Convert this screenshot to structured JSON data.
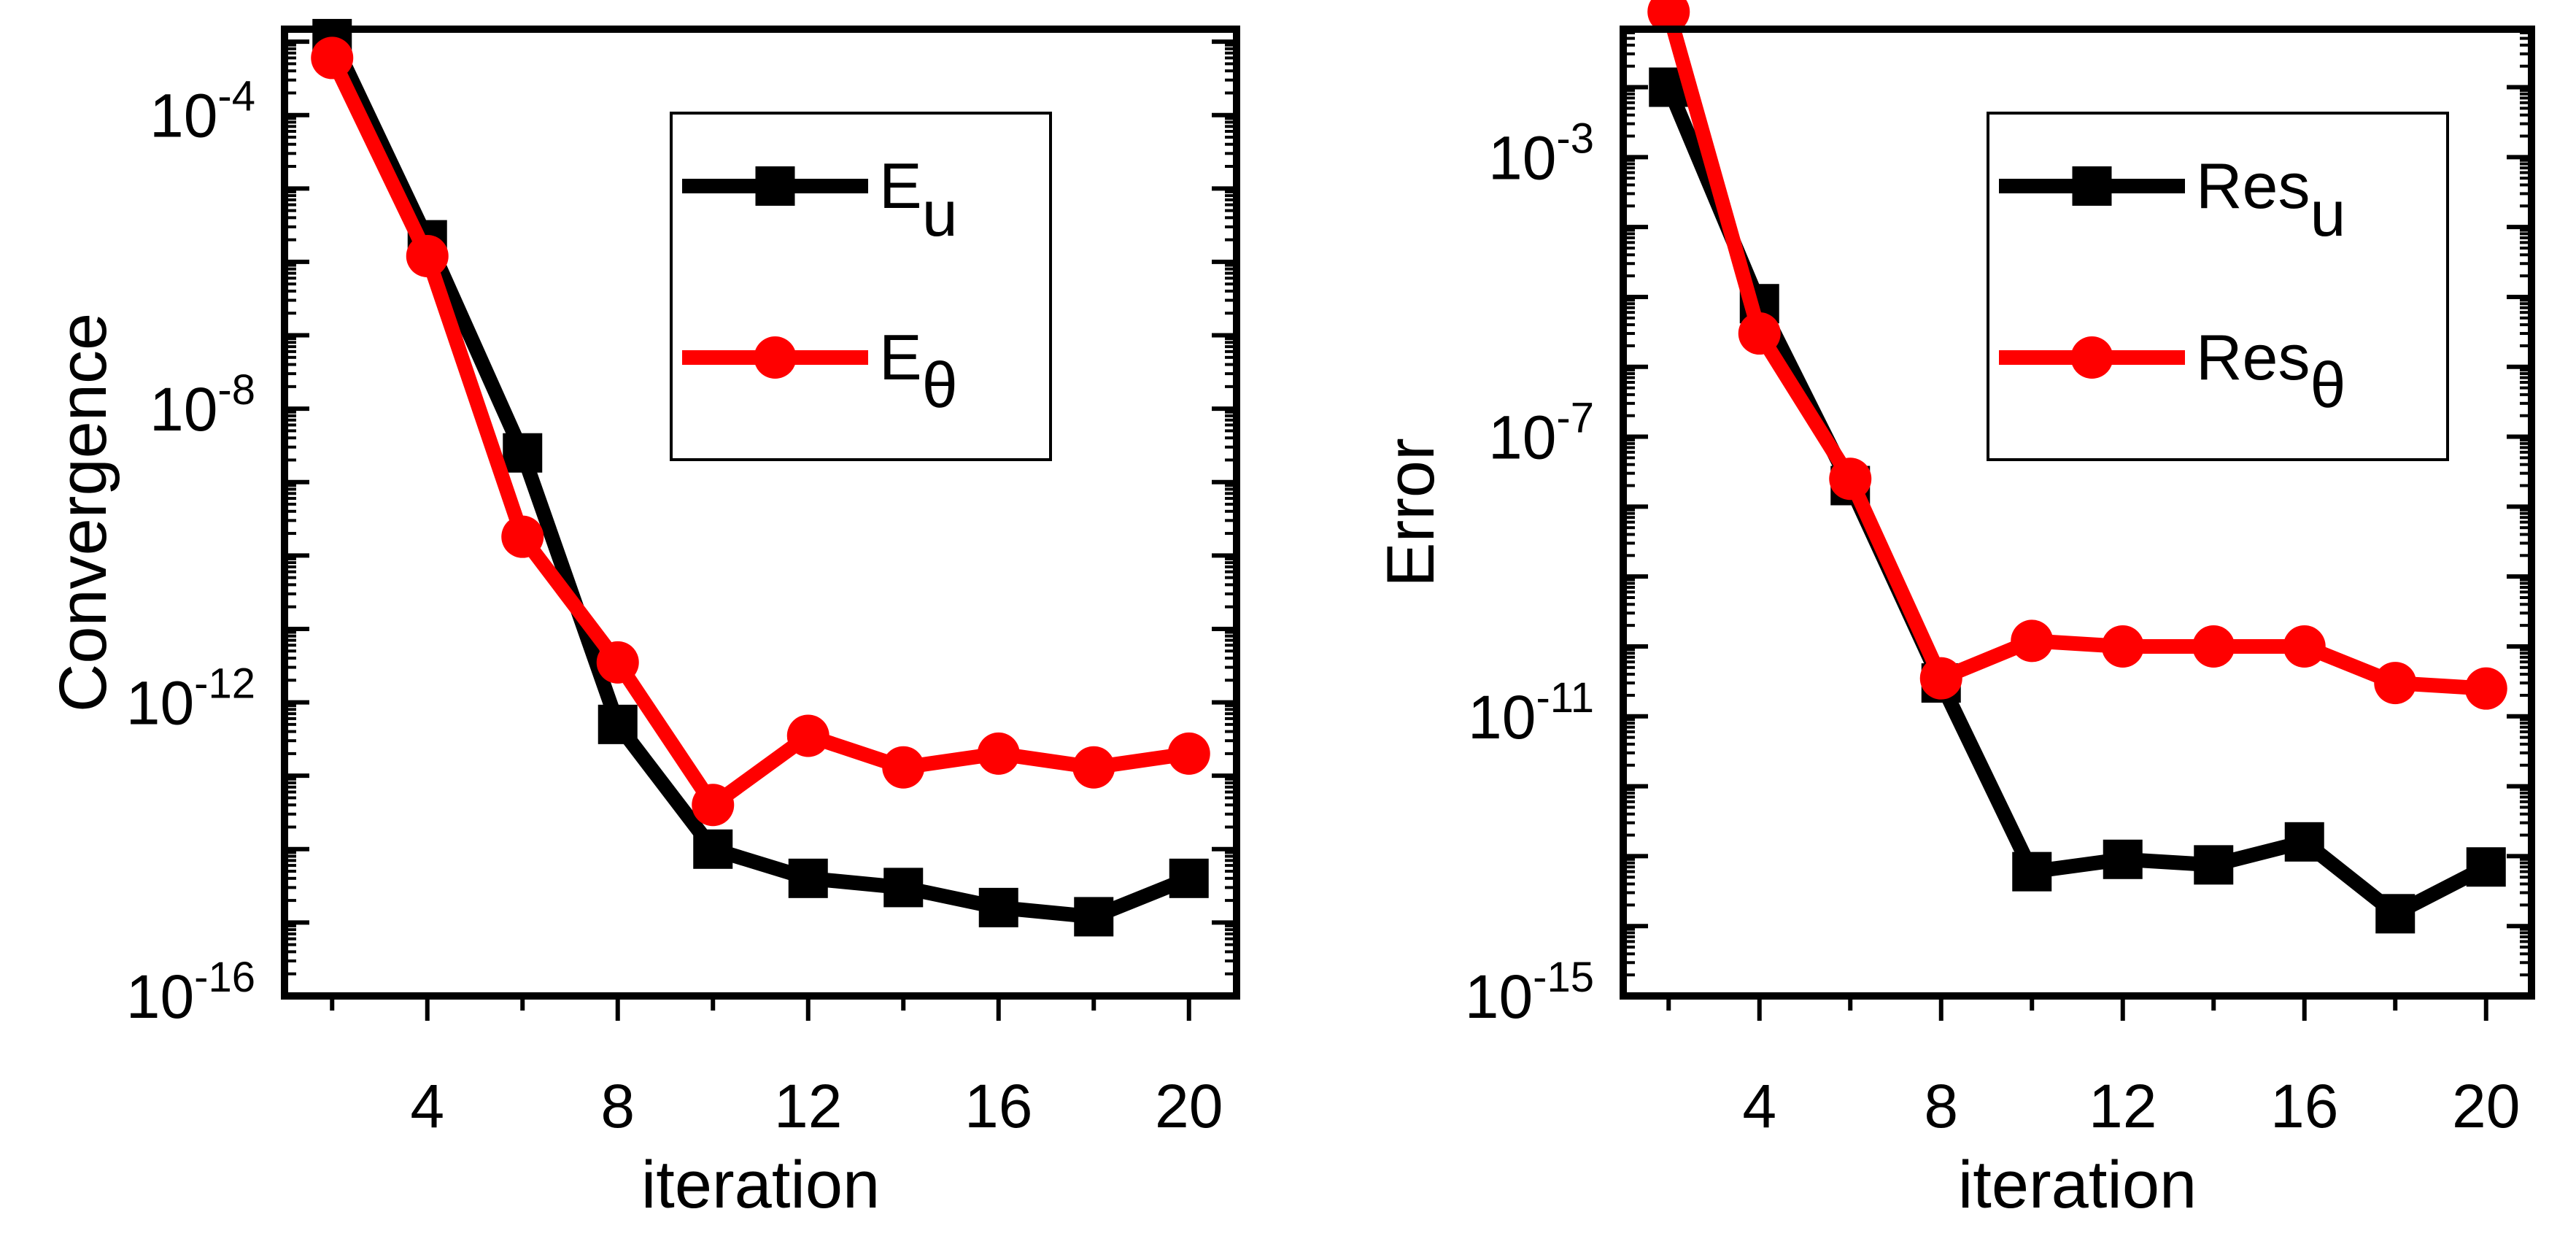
{
  "chart_data": [
    {
      "type": "line",
      "yscale": "log",
      "xlabel": "iteration",
      "ylabel": "Convergence",
      "xlim": [
        1,
        21
      ],
      "ylim_exp": [
        -16,
        -2.83
      ],
      "x_ticks": [
        4,
        8,
        12,
        16,
        20
      ],
      "x_tick_labels": [
        "4",
        "8",
        "12",
        "16",
        "20"
      ],
      "y_tick_exponents": [
        -16,
        -12,
        -8,
        -4
      ],
      "y_tick_base": "10",
      "y_tick_sups": [
        "-16",
        "-12",
        "-8",
        "-4"
      ],
      "x": [
        2,
        4,
        6,
        8,
        10,
        12,
        14,
        16,
        18,
        20
      ],
      "legend": [
        {
          "base": "E",
          "sub": "u"
        },
        {
          "base": "E",
          "sub": "θ"
        }
      ],
      "series": [
        {
          "name": "E_u",
          "color": "#000000",
          "marker": "square",
          "values": [
            0.0011,
            2e-06,
            2.5e-09,
            5e-13,
            1e-14,
            4e-15,
            3e-15,
            1.6e-15,
            1.2e-15,
            4e-15
          ]
        },
        {
          "name": "E_θ",
          "color": "#ff0000",
          "marker": "circle",
          "values": [
            0.0006,
            1.2e-06,
            1.8e-10,
            3.5e-12,
            4e-14,
            3.5e-13,
            1.3e-13,
            2e-13,
            1.3e-13,
            2e-13
          ]
        }
      ]
    },
    {
      "type": "line",
      "yscale": "log",
      "xlabel": "iteration",
      "ylabel": "Error",
      "xlim": [
        1,
        21
      ],
      "ylim_exp": [
        -15,
        -1.17
      ],
      "x_ticks": [
        4,
        8,
        12,
        16,
        20
      ],
      "x_tick_labels": [
        "4",
        "8",
        "12",
        "16",
        "20"
      ],
      "y_tick_exponents": [
        -15,
        -11,
        -7,
        -3
      ],
      "y_tick_base": "10",
      "y_tick_sups": [
        "-15",
        "-11",
        "-7",
        "-3"
      ],
      "x": [
        2,
        4,
        6,
        8,
        10,
        12,
        14,
        16,
        18,
        20
      ],
      "legend": [
        {
          "base": "Res",
          "sub": "u"
        },
        {
          "base": "Res",
          "sub": "θ"
        }
      ],
      "series": [
        {
          "name": "Res_u",
          "color": "#000000",
          "marker": "square",
          "values": [
            0.01,
            8e-06,
            2e-08,
            3e-11,
            6e-14,
            9e-14,
            7.5e-14,
            1.6e-13,
            1.5e-14,
            7e-14
          ]
        },
        {
          "name": "Res_θ",
          "color": "#ff0000",
          "marker": "circle",
          "values": [
            0.12,
            3e-06,
            2.5e-08,
            3.5e-11,
            1.2e-10,
            1e-10,
            1e-10,
            1e-10,
            3e-11,
            2.5e-11
          ]
        }
      ]
    }
  ]
}
